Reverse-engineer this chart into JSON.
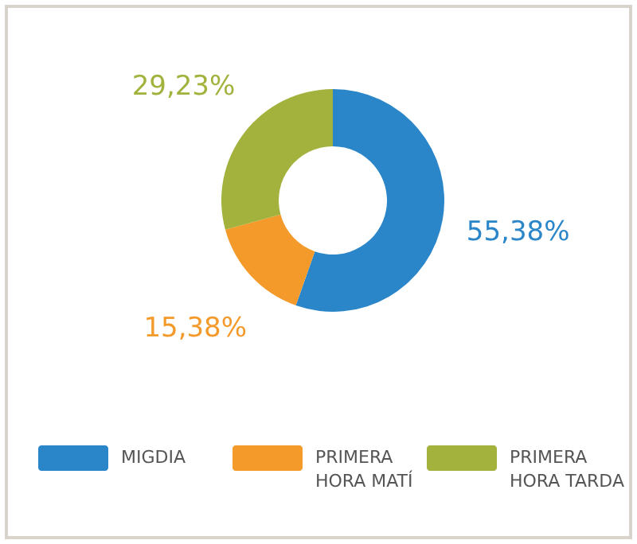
{
  "chart_data": {
    "type": "donut",
    "categories": [
      "MIGDIA",
      "PRIMERA HORA MATÍ",
      "PRIMERA HORA TARDA"
    ],
    "values": [
      55.38,
      15.38,
      29.23
    ],
    "colors": [
      "#2a86c8",
      "#f39a2b",
      "#a2b23c"
    ],
    "value_labels": [
      "55,38%",
      "15,38%",
      "29,23%"
    ],
    "legend": "bottom"
  }
}
